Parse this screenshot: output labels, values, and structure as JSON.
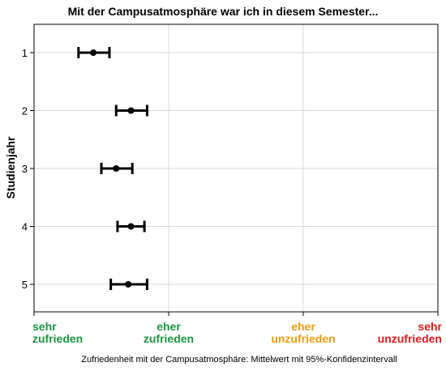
{
  "chart_data": {
    "type": "errorbar",
    "title": "Mit der Campusatmosphäre war ich in diesem Semester...",
    "xlabel": "Zufriedenheit mit der Campusatmosphäre: Mittelwert mit 95%-Konfidenzintervall",
    "ylabel": "Studienjahr",
    "xlim": [
      1,
      4
    ],
    "x_ticks": [
      {
        "value": 1,
        "lines": [
          "sehr",
          "zufrieden"
        ],
        "color": "#1a9641"
      },
      {
        "value": 2,
        "lines": [
          "eher",
          "zufrieden"
        ],
        "color": "#1a9641"
      },
      {
        "value": 3,
        "lines": [
          "eher",
          "unzufrieden"
        ],
        "color": "#f39c12"
      },
      {
        "value": 4,
        "lines": [
          "sehr",
          "unzufrieden"
        ],
        "color": "#e31a1c"
      }
    ],
    "categories": [
      "1",
      "2",
      "3",
      "4",
      "5"
    ],
    "points": [
      {
        "category": "1",
        "mean": 1.44,
        "lower": 1.33,
        "upper": 1.56
      },
      {
        "category": "2",
        "mean": 1.72,
        "lower": 1.61,
        "upper": 1.84
      },
      {
        "category": "3",
        "mean": 1.61,
        "lower": 1.5,
        "upper": 1.73
      },
      {
        "category": "4",
        "mean": 1.72,
        "lower": 1.62,
        "upper": 1.82
      },
      {
        "category": "5",
        "mean": 1.7,
        "lower": 1.57,
        "upper": 1.84
      }
    ],
    "grid": true
  }
}
